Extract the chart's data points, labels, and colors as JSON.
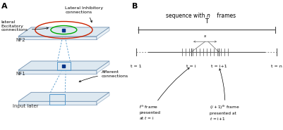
{
  "panel_a_label": "A",
  "panel_b_label": "B",
  "layer_edge_color": "#7090b0",
  "layer_face_color": "#dde8f0",
  "excitatory_color": "#00aa00",
  "inhibitory_color": "#cc2200",
  "afferent_color": "#5599cc",
  "neuron_color": "#003388",
  "text_color": "#000000",
  "nf2_label": "NF2",
  "nf1_label": "NF1",
  "input_label": "Input later",
  "lateral_exc_label": "lateral\nExcitatory\nconnections",
  "lateral_inh_label": "Lateral Inhibitory\nconnections",
  "afferent_label": "Afferent\nconnections",
  "T_label": "T",
  "s_label": "s",
  "background": "#ffffff"
}
